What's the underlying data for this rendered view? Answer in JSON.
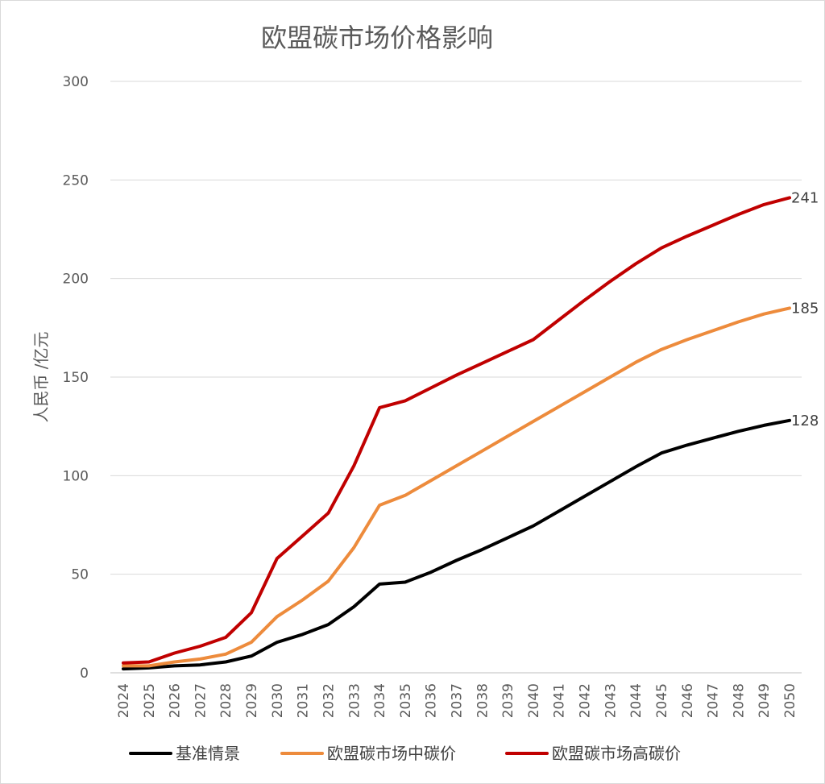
{
  "chart_data": {
    "type": "line",
    "title": "欧盟碳市场价格影响",
    "xlabel": "",
    "ylabel": "人民币 /亿元",
    "ylim": [
      0,
      300
    ],
    "yticks": [
      0,
      50,
      100,
      150,
      200,
      250,
      300
    ],
    "grid": true,
    "legend_position": "bottom",
    "x": [
      "2024",
      "2025",
      "2026",
      "2027",
      "2028",
      "2029",
      "2030",
      "2031",
      "2032",
      "2033",
      "2034",
      "2035",
      "2036",
      "2037",
      "2038",
      "2039",
      "2040",
      "2041",
      "2042",
      "2043",
      "2044",
      "2045",
      "2046",
      "2047",
      "2048",
      "2049",
      "2050"
    ],
    "series": [
      {
        "name": "基准情景",
        "color": "#000000",
        "values": [
          2,
          2.5,
          3.5,
          4,
          5.5,
          8.5,
          15.5,
          19.5,
          24.5,
          33.5,
          45,
          46,
          51,
          57,
          62.5,
          68.5,
          74.5,
          82,
          89.5,
          97,
          104.5,
          111.5,
          115.5,
          119,
          122.5,
          125.5,
          128
        ],
        "end_label": "128"
      },
      {
        "name": "欧盟碳市场中碳价",
        "color": "#ed8b3c",
        "values": [
          3.5,
          3.5,
          5.5,
          7,
          9.5,
          15.5,
          28.5,
          37,
          46.5,
          63.5,
          85,
          90,
          97.5,
          105,
          112.5,
          120,
          127.5,
          135,
          142.5,
          150,
          157.5,
          164,
          169,
          173.5,
          178,
          182,
          185
        ],
        "end_label": "185"
      },
      {
        "name": "欧盟碳市场高碳价",
        "color": "#c00000",
        "values": [
          5,
          5.5,
          10,
          13.5,
          18,
          30.5,
          58,
          69.5,
          81,
          105,
          134.5,
          138,
          144.5,
          151,
          157,
          163,
          169,
          179,
          189,
          198.5,
          207.5,
          215.5,
          221.5,
          227,
          232.5,
          237.5,
          241
        ],
        "end_label": "241"
      }
    ]
  }
}
